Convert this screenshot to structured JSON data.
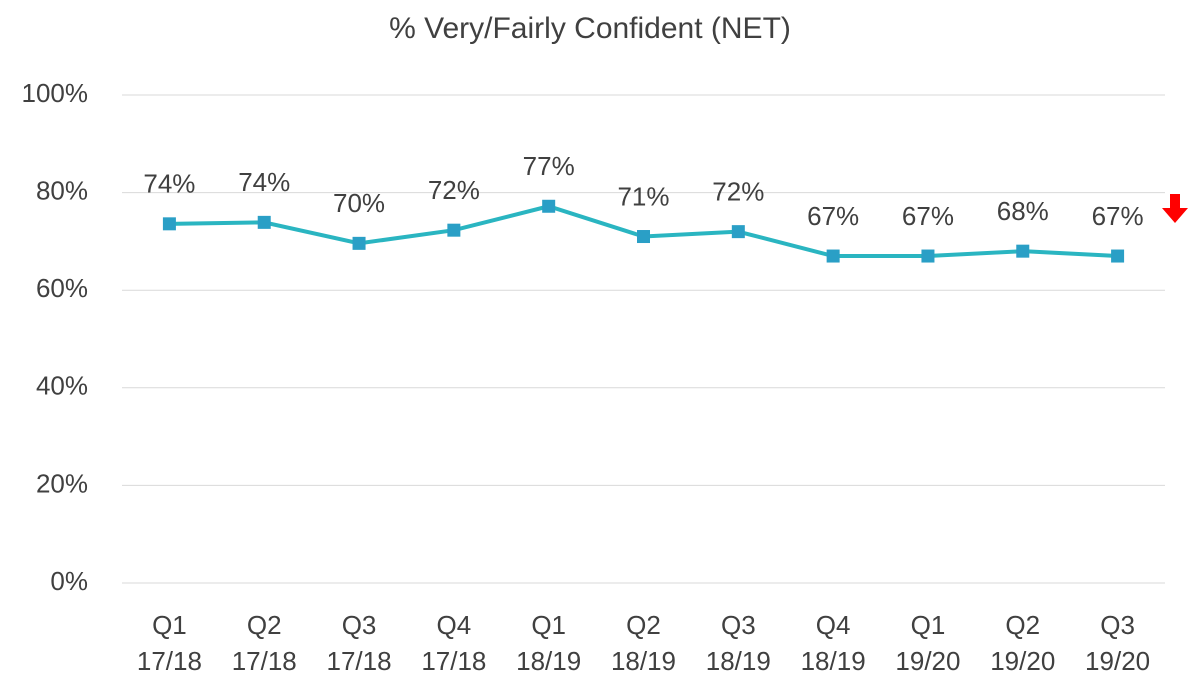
{
  "chart_data": {
    "type": "line",
    "title": "% Very/Fairly Confident (NET)",
    "categories": [
      [
        "Q1",
        "17/18"
      ],
      [
        "Q2",
        "17/18"
      ],
      [
        "Q3",
        "17/18"
      ],
      [
        "Q4",
        "17/18"
      ],
      [
        "Q1",
        "18/19"
      ],
      [
        "Q2",
        "18/19"
      ],
      [
        "Q3",
        "18/19"
      ],
      [
        "Q4",
        "18/19"
      ],
      [
        "Q1",
        "19/20"
      ],
      [
        "Q2",
        "19/20"
      ],
      [
        "Q3",
        "19/20"
      ]
    ],
    "series": [
      {
        "name": "% Very/Fairly Confident (NET)",
        "color": "#2ab5c1",
        "marker_color": "#2a9fc6",
        "values": [
          73.6,
          73.9,
          69.6,
          72.3,
          77.2,
          71.0,
          72.0,
          67.0,
          67.0,
          68.0,
          67.0
        ],
        "value_labels": [
          "74%",
          "74%",
          "70%",
          "72%",
          "77%",
          "71%",
          "72%",
          "67%",
          "67%",
          "68%",
          "67%"
        ]
      }
    ],
    "ylim": [
      0,
      100
    ],
    "yticks": [
      {
        "value": 0,
        "label": "0%"
      },
      {
        "value": 20,
        "label": "20%"
      },
      {
        "value": 40,
        "label": "40%"
      },
      {
        "value": 60,
        "label": "60%"
      },
      {
        "value": 80,
        "label": "80%"
      },
      {
        "value": 100,
        "label": "100%"
      }
    ],
    "grid": true
  }
}
